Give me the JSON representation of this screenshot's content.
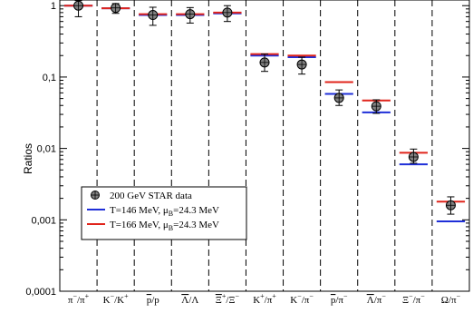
{
  "chart_data": {
    "type": "scatter",
    "ylabel": "Ratios",
    "yscale": "log",
    "ylim": [
      0.0001,
      1.2
    ],
    "yticks": [
      "0,0001",
      "0,001",
      "0,01",
      "0,1",
      "1"
    ],
    "categories": [
      "π⁻/π⁺",
      "K⁻/K⁺",
      "p̄/p",
      "Λ̄/Λ",
      "Ξ̄⁺/Ξ⁻",
      "K⁺/π⁺",
      "K⁻/π⁻",
      "p̄/π⁻",
      "Λ̄/π⁻",
      "Ξ⁻/π⁻",
      "Ω/π⁻"
    ],
    "series": [
      {
        "name": "200 GeV STAR data",
        "marker": "circle-with-cross",
        "color": "#808080",
        "values": [
          1.0,
          0.93,
          0.74,
          0.76,
          0.8,
          0.16,
          0.15,
          0.051,
          0.039,
          0.0076,
          0.0016
        ],
        "err_low": [
          0.7,
          0.78,
          0.53,
          0.57,
          0.6,
          0.12,
          0.11,
          0.04,
          0.031,
          0.0062,
          0.0012
        ],
        "err_high": [
          1.18,
          1.07,
          0.95,
          0.94,
          1.0,
          0.21,
          0.19,
          0.066,
          0.048,
          0.0098,
          0.0021
        ]
      },
      {
        "name": "T=146 MeV, μB=24.3 MeV",
        "marker": "hline",
        "color": "#1f2fd8",
        "values": [
          1.0,
          0.92,
          0.74,
          0.74,
          0.78,
          0.2,
          0.19,
          0.058,
          0.032,
          0.006,
          0.00095
        ]
      },
      {
        "name": "T=166 MeV, μB=24.3 MeV",
        "marker": "hline",
        "color": "#e0241b",
        "values": [
          1.0,
          0.92,
          0.76,
          0.76,
          0.8,
          0.21,
          0.2,
          0.085,
          0.047,
          0.0087,
          0.0018
        ]
      }
    ],
    "legend": {
      "placement": "lower-left",
      "entries": [
        "200 GeV STAR data",
        "T=146 MeV, μB=24.3 MeV",
        "T=166 MeV, μB=24.3 MeV"
      ]
    }
  }
}
